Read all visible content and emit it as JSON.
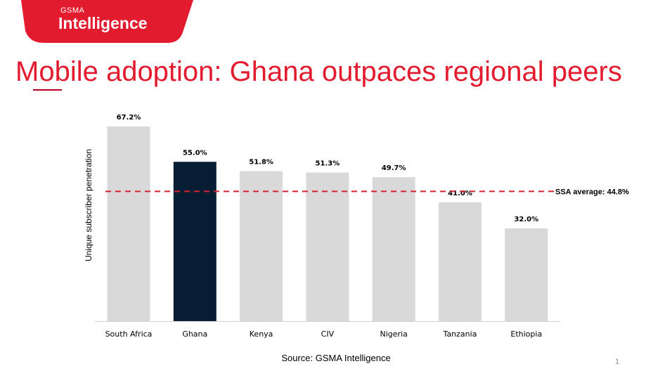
{
  "logo": {
    "brand": "GSMA",
    "product": "Intelligence",
    "background_color": "#e31b2f"
  },
  "title": "Mobile adoption: Ghana outpaces regional peers",
  "chart_data": {
    "type": "bar",
    "categories": [
      "South Africa",
      "Ghana",
      "Kenya",
      "CIV",
      "Nigeria",
      "Tanzania",
      "Ethiopia"
    ],
    "values": [
      67.2,
      55.0,
      51.8,
      51.3,
      49.7,
      41.0,
      32.0
    ],
    "value_labels": [
      "67.2%",
      "55.0%",
      "51.8%",
      "51.3%",
      "49.7%",
      "41.0%",
      "32.0%"
    ],
    "highlight": "Ghana",
    "colors": {
      "default": "#d9d9d9",
      "highlight": "#071d33",
      "reference": "#d6222e"
    },
    "ylabel": "Unique subscriber penetration",
    "xlabel": "",
    "ylim": [
      0,
      67.2
    ],
    "reference_line": {
      "value": 44.8,
      "label": "SSA average: 44.8%"
    }
  },
  "source": "Source: GSMA Intelligence",
  "page_number": "1"
}
